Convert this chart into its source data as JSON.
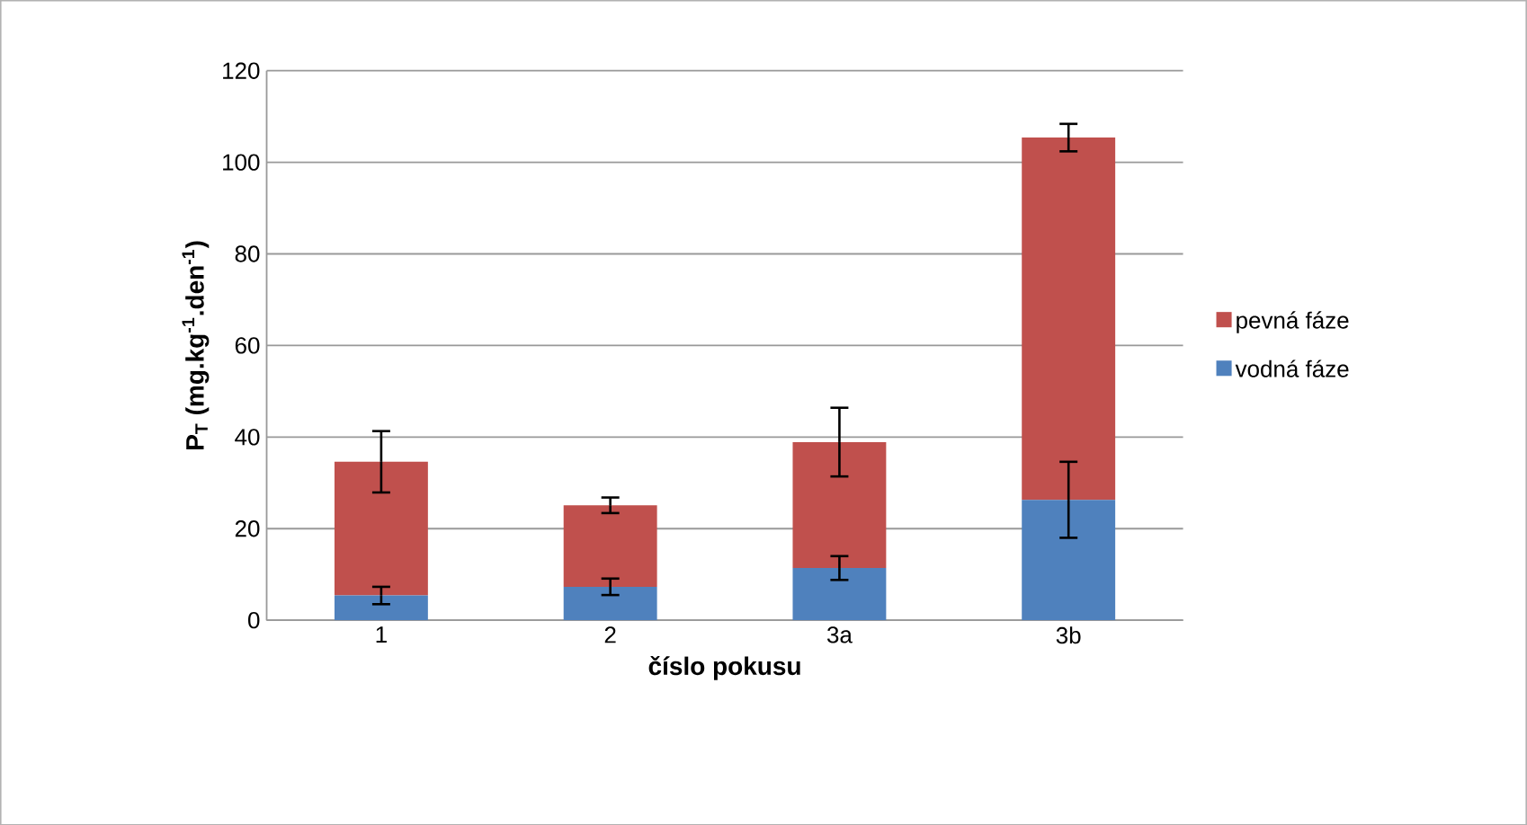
{
  "chart_data": {
    "type": "bar",
    "stacked": true,
    "xlabel": "číslo pokusu",
    "ylabel": "P$_{T}$ (mg.kg$^{-1}$.den$^{-1}$)",
    "categories": [
      "1",
      "2",
      "3a",
      "3b"
    ],
    "series": [
      {
        "name": "vodná fáze",
        "color": "#4f81bd",
        "values": [
          5.4,
          7.3,
          11.4,
          26.3
        ],
        "errors": [
          1.9,
          1.8,
          2.6,
          8.3
        ]
      },
      {
        "name": "pevná fáze",
        "color": "#c0504d",
        "values": [
          29.2,
          17.8,
          27.5,
          79.1
        ],
        "errors": [
          6.7,
          1.7,
          7.5,
          3.0
        ]
      }
    ],
    "ylim": [
      0,
      120
    ],
    "yticks": [
      0,
      20,
      40,
      60,
      80,
      100,
      120
    ],
    "grid": "y",
    "legend": "right"
  }
}
